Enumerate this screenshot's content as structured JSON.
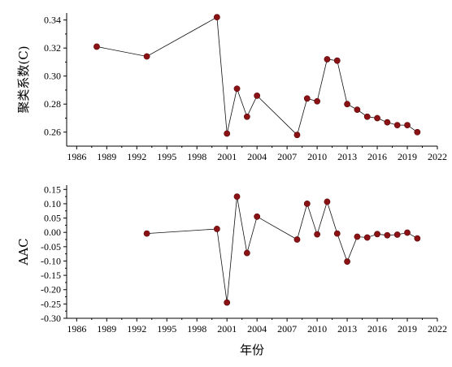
{
  "chart_data": [
    {
      "type": "line",
      "ylabel": "聚类系数(C)",
      "xlabel": "",
      "xlim": [
        1985,
        2022
      ],
      "ylim": [
        0.25,
        0.345
      ],
      "xticks": [
        1986,
        1989,
        1992,
        1995,
        1998,
        2001,
        2004,
        2007,
        2010,
        2013,
        2016,
        2019,
        2022
      ],
      "yticks": [
        0.26,
        0.28,
        0.3,
        0.32,
        0.34
      ],
      "ytick_labels": [
        "0.26",
        "0.28",
        "0.30",
        "0.32",
        "0.34"
      ],
      "grid": false,
      "color": "#8b1214",
      "x": [
        1988,
        1993,
        2000,
        2001,
        2002,
        2003,
        2004,
        2008,
        2009,
        2010,
        2011,
        2012,
        2013,
        2014,
        2015,
        2016,
        2017,
        2018,
        2019,
        2020
      ],
      "y": [
        0.321,
        0.314,
        0.342,
        0.259,
        0.291,
        0.271,
        0.286,
        0.258,
        0.284,
        0.282,
        0.312,
        0.311,
        0.28,
        0.276,
        0.271,
        0.27,
        0.267,
        0.265,
        0.265,
        0.26
      ]
    },
    {
      "type": "line",
      "ylabel": "AAC",
      "xlabel": "年份",
      "xlim": [
        1985,
        2022
      ],
      "ylim": [
        -0.3,
        0.165
      ],
      "xticks": [
        1986,
        1989,
        1992,
        1995,
        1998,
        2001,
        2004,
        2007,
        2010,
        2013,
        2016,
        2019,
        2022
      ],
      "yticks": [
        -0.3,
        -0.25,
        -0.2,
        -0.15,
        -0.1,
        -0.05,
        0.0,
        0.05,
        0.1,
        0.15
      ],
      "ytick_labels": [
        "-0.30",
        "-0.25",
        "-0.20",
        "-0.15",
        "-0.10",
        "-0.05",
        "0.00",
        "0.05",
        "0.10",
        "0.15"
      ],
      "grid": false,
      "color": "#8b1214",
      "x": [
        1993,
        2000,
        2001,
        2002,
        2003,
        2004,
        2008,
        2009,
        2010,
        2011,
        2012,
        2013,
        2014,
        2015,
        2016,
        2017,
        2018,
        2019,
        2020
      ],
      "y": [
        -0.004,
        0.012,
        -0.245,
        0.125,
        -0.072,
        0.055,
        -0.025,
        0.1,
        -0.007,
        0.107,
        -0.004,
        -0.102,
        -0.015,
        -0.018,
        -0.006,
        -0.01,
        -0.008,
        -0.001,
        -0.021
      ]
    }
  ]
}
